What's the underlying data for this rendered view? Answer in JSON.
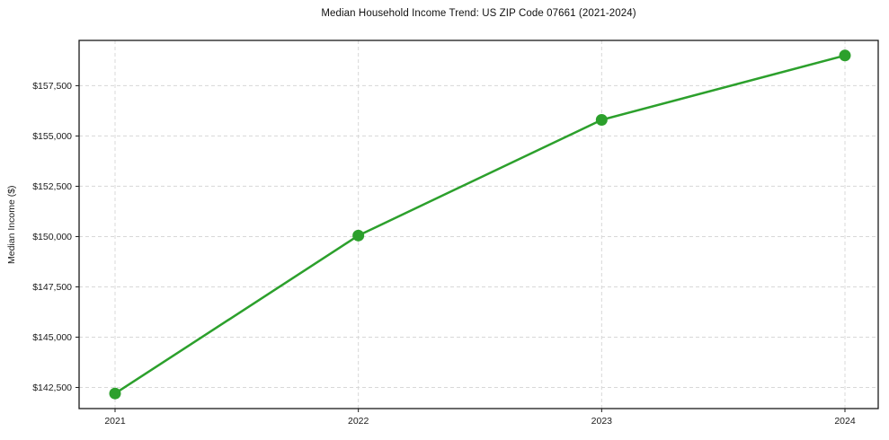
{
  "chart_data": {
    "type": "line",
    "title": "Median Household Income Trend: US ZIP Code 07661 (2021-2024)",
    "xlabel": "",
    "ylabel": "Median Income ($)",
    "categories": [
      "2021",
      "2022",
      "2023",
      "2024"
    ],
    "values": [
      142200,
      150050,
      155800,
      159000
    ],
    "ylim": [
      141450,
      159750
    ],
    "yticks": [
      142500,
      145000,
      147500,
      150000,
      152500,
      155000,
      157500
    ],
    "ytick_labels": [
      "$142,500",
      "$145,000",
      "$147,500",
      "$150,000",
      "$152,500",
      "$155,000",
      "$157,500"
    ],
    "grid": true,
    "grid_style": "dashed",
    "legend": false,
    "marker": "circle",
    "colors": {
      "line": "#2ca02c",
      "marker": "#2ca02c",
      "grid": "#d8d8d8",
      "axis": "#1a1a1a",
      "text": "#1a1a1a",
      "background": "#ffffff"
    }
  }
}
